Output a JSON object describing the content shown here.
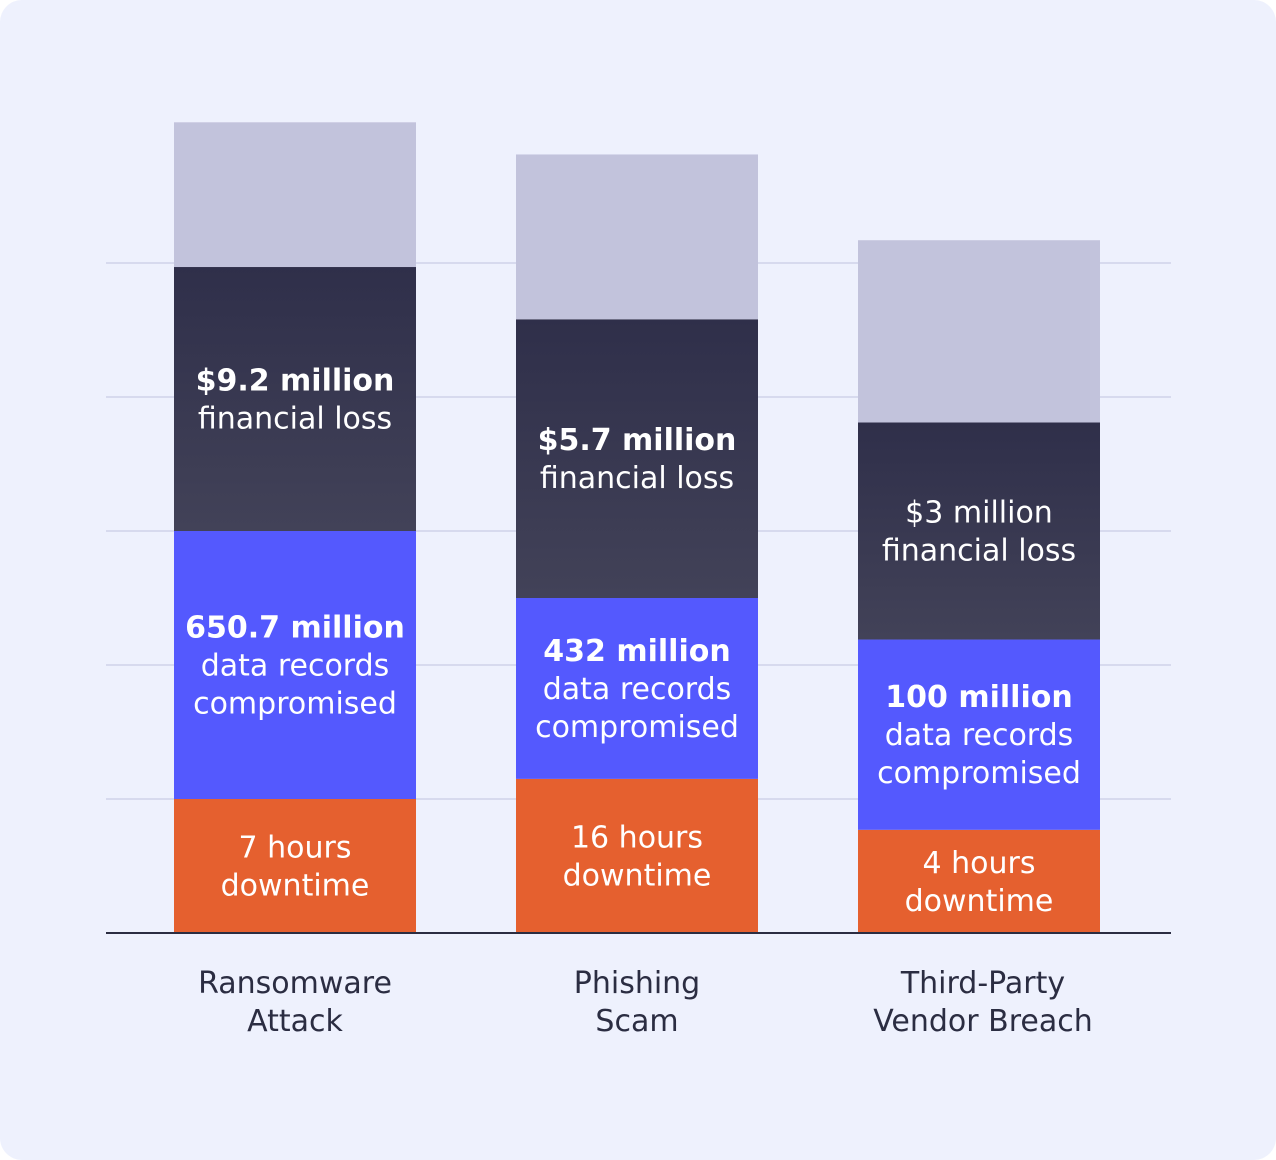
{
  "chart_data": {
    "type": "bar",
    "stacked": true,
    "categories": [
      [
        "Ransomware",
        "Attack"
      ],
      [
        "Phishing",
        "Scam"
      ],
      [
        "Third-Party",
        "Vendor Breach"
      ]
    ],
    "y_units": 6.05,
    "grid": true,
    "stack_order": [
      "downtime",
      "records",
      "loss",
      "top"
    ],
    "series": [
      {
        "key": "downtime",
        "color": "#e5602f",
        "values": [
          1.0,
          1.15,
          0.77
        ]
      },
      {
        "key": "records",
        "color": "#5459fe",
        "values": [
          2.0,
          1.35,
          1.42
        ]
      },
      {
        "key": "loss",
        "color_top": "#2f2f4a",
        "color_bottom": "#424258",
        "values": [
          1.97,
          2.08,
          1.62
        ]
      },
      {
        "key": "top",
        "color": "#c2c3dc",
        "values": [
          1.08,
          1.23,
          1.36
        ]
      }
    ],
    "labels": [
      {
        "downtime": {
          "bold": "",
          "lines": [
            "7 hours",
            "downtime"
          ]
        },
        "records": {
          "bold": "650.7 million",
          "lines": [
            "data records",
            "compromised"
          ]
        },
        "loss": {
          "bold": "$9.2 million",
          "lines": [
            "financial loss"
          ]
        }
      },
      {
        "downtime": {
          "bold": "",
          "lines": [
            "16 hours",
            "downtime"
          ]
        },
        "records": {
          "bold": "432 million",
          "lines": [
            "data records",
            "compromised"
          ]
        },
        "loss": {
          "bold": "$5.7 million",
          "lines": [
            "financial loss"
          ]
        }
      },
      {
        "downtime": {
          "bold": "",
          "lines": [
            "4 hours",
            "downtime"
          ]
        },
        "records": {
          "bold": "100 million",
          "lines": [
            "data records",
            "compromised"
          ]
        },
        "loss": {
          "bold": "",
          "lines": [
            "$3 million",
            "financial loss"
          ]
        }
      }
    ],
    "colors": {
      "grid": "#cfd2ea",
      "axis": "#2b2d42",
      "background": "#eef1fd",
      "text_on_bar": "#ffffff",
      "category_text": "#2b2d42"
    }
  }
}
